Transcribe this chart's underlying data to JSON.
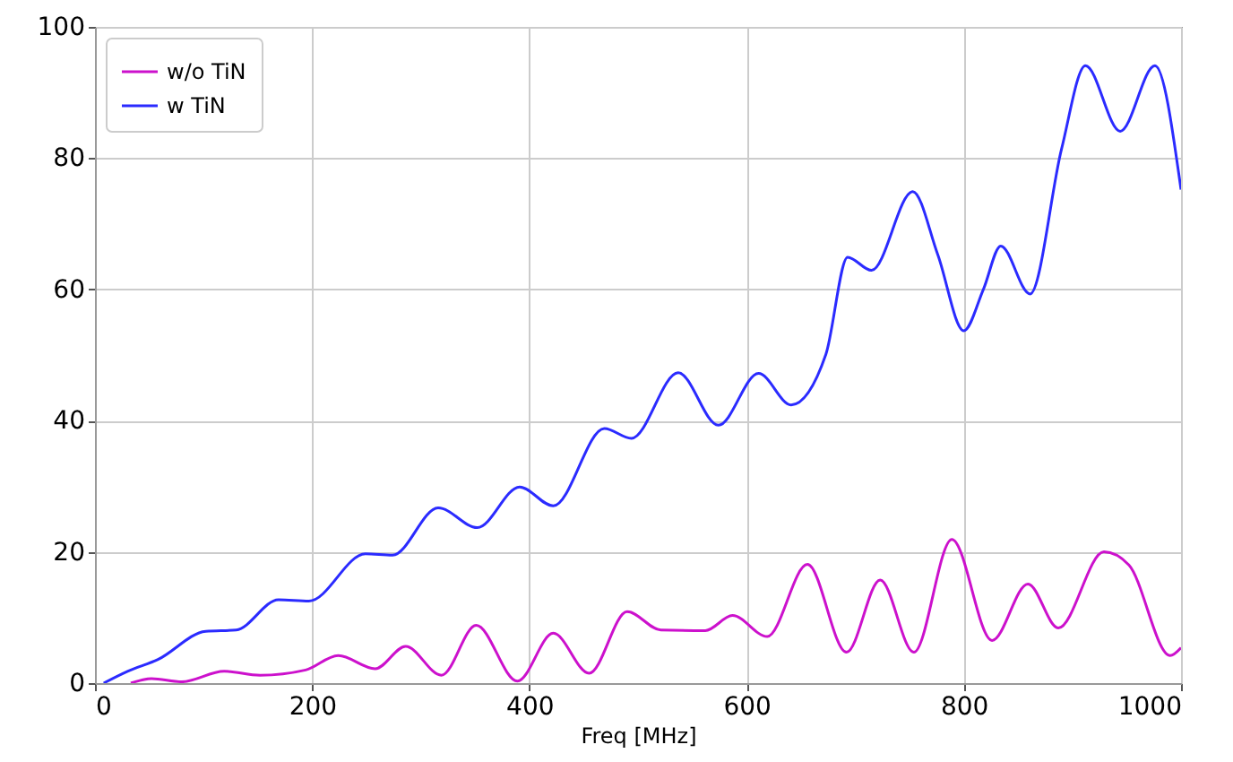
{
  "chart_data": {
    "type": "line",
    "xlabel": "Freq [MHz]",
    "xlim": [
      0,
      1000
    ],
    "ylim": [
      0,
      100
    ],
    "xticks": [
      0,
      200,
      400,
      600,
      800,
      1000
    ],
    "yticks": [
      0,
      20,
      40,
      60,
      80,
      100
    ],
    "grid": true,
    "legend": "top left",
    "line_style": "solid",
    "marker": "none",
    "series": [
      {
        "name": "w/o TiN",
        "color": "#cc11cc",
        "x": [
          33,
          52,
          80,
          119,
          152,
          194,
          224,
          258,
          286,
          319,
          351,
          389,
          422,
          455,
          490,
          521,
          562,
          587,
          619,
          656,
          692,
          723,
          754,
          789,
          826,
          859,
          887,
          929,
          952,
          990,
          1000
        ],
        "values": [
          0,
          0.7,
          0.2,
          1.8,
          1.2,
          2.0,
          4.2,
          2.2,
          5.6,
          1.2,
          8.8,
          0.3,
          7.6,
          1.5,
          10.9,
          8.1,
          8.0,
          10.3,
          7.1,
          18.1,
          4.7,
          15.7,
          4.7,
          21.9,
          6.5,
          15.1,
          8.4,
          20.0,
          18.0,
          4.2,
          5.4
        ]
      },
      {
        "name": "w TiN",
        "color": "#2b2bff",
        "x": [
          8,
          30,
          58,
          102,
          130,
          169,
          197,
          249,
          274,
          316,
          352,
          391,
          422,
          469,
          494,
          537,
          574,
          611,
          641,
          673,
          693,
          715,
          753,
          776,
          800,
          818,
          834,
          861,
          890,
          912,
          944,
          976,
          1000
        ],
        "values": [
          0,
          1.8,
          3.6,
          7.9,
          8.1,
          12.7,
          12.5,
          19.7,
          19.5,
          26.7,
          23.7,
          29.9,
          27.0,
          38.8,
          37.3,
          47.3,
          39.3,
          47.2,
          42.4,
          50.1,
          64.9,
          62.9,
          74.9,
          65.3,
          53.7,
          60.0,
          66.6,
          59.3,
          81.4,
          94.1,
          84.1,
          94.1,
          75.2
        ]
      }
    ]
  }
}
